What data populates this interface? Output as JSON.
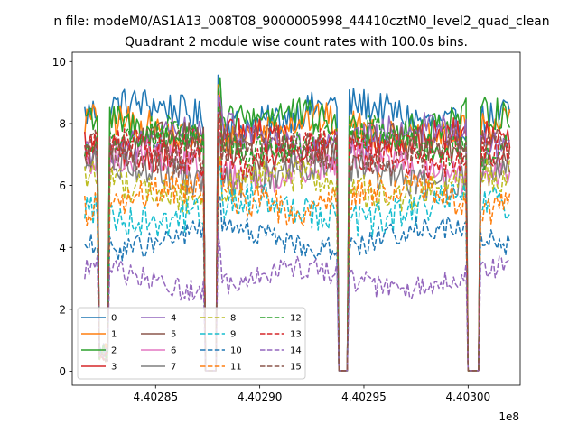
{
  "chart_data": {
    "type": "line",
    "suptitle": "n file: modeM0/AS1A13_008T08_9000005998_44410cztM0_level2_quad_clean",
    "title": "Quadrant 2 module wise count rates with 100.0s bins.",
    "xlabel": "",
    "ylabel": "",
    "x_offset_label": "1e8",
    "xlim": [
      440281000,
      440302500
    ],
    "ylim": [
      -0.45,
      10.3
    ],
    "x_ticks": [
      440285000,
      440290000,
      440295000,
      440300000
    ],
    "x_tick_labels": [
      "4.40285",
      "4.40290",
      "4.40295",
      "4.40300"
    ],
    "y_ticks": [
      0,
      2,
      4,
      6,
      8,
      10
    ],
    "y_tick_labels": [
      "0",
      "2",
      "4",
      "6",
      "8",
      "10"
    ],
    "x_start": 440281600,
    "x_end": 440302000,
    "bin_seconds": 100,
    "gaps": [
      {
        "start": 440282300,
        "end": 440282700,
        "type": "dip"
      },
      {
        "start": 440287400,
        "end": 440287900,
        "type": "flat"
      },
      {
        "start": 440293800,
        "end": 440294200,
        "type": "flat"
      },
      {
        "start": 440300000,
        "end": 440300500,
        "type": "flat"
      }
    ],
    "grid": false,
    "legend_position": "lower-left",
    "legend_columns": 4,
    "series": [
      {
        "name": "0",
        "color": "#1f77b4",
        "dash": "solid",
        "level": 8.3
      },
      {
        "name": "1",
        "color": "#ff7f0e",
        "dash": "solid",
        "level": 7.8
      },
      {
        "name": "2",
        "color": "#2ca02c",
        "dash": "solid",
        "level": 8.0
      },
      {
        "name": "3",
        "color": "#d62728",
        "dash": "solid",
        "level": 7.3
      },
      {
        "name": "4",
        "color": "#9467bd",
        "dash": "solid",
        "level": 7.5
      },
      {
        "name": "5",
        "color": "#8c564b",
        "dash": "solid",
        "level": 7.2
      },
      {
        "name": "6",
        "color": "#e377c2",
        "dash": "solid",
        "level": 6.6
      },
      {
        "name": "7",
        "color": "#7f7f7f",
        "dash": "solid",
        "level": 6.4
      },
      {
        "name": "8",
        "color": "#bcbd22",
        "dash": "dashed",
        "level": 6.0
      },
      {
        "name": "9",
        "color": "#17becf",
        "dash": "dashed",
        "level": 5.2
      },
      {
        "name": "10",
        "color": "#1f77b4",
        "dash": "dashed",
        "level": 4.3
      },
      {
        "name": "11",
        "color": "#ff7f0e",
        "dash": "dashed",
        "level": 5.6
      },
      {
        "name": "12",
        "color": "#2ca02c",
        "dash": "dashed",
        "level": 7.4
      },
      {
        "name": "13",
        "color": "#d62728",
        "dash": "dashed",
        "level": 7.0
      },
      {
        "name": "14",
        "color": "#9467bd",
        "dash": "dashed",
        "level": 3.0
      },
      {
        "name": "15",
        "color": "#8c564b",
        "dash": "dashed",
        "level": 7.1
      }
    ]
  }
}
